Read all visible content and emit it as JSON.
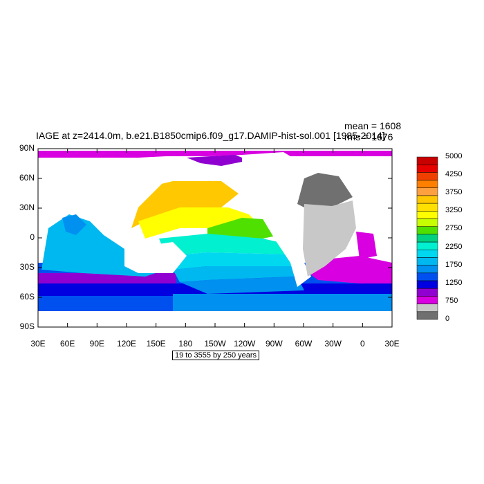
{
  "header": {
    "title": "IAGE at z=2414.0m, b.e21.B1850cmip6.f09_g17.DAMIP-hist-sol.001 [1985-2014]",
    "mean_label": "mean = 1608",
    "rms_label": "rms = 1676"
  },
  "axes": {
    "y_ticks": [
      "90N",
      "60N",
      "30N",
      "0",
      "30S",
      "60S",
      "90S"
    ],
    "x_ticks": [
      "30E",
      "60E",
      "90E",
      "120E",
      "150E",
      "180",
      "150W",
      "120W",
      "90W",
      "60W",
      "30W",
      "0",
      "30E"
    ]
  },
  "contour_info": "19 to 3555 by 250 years",
  "colorbar": {
    "labels": [
      "5000",
      "4250",
      "3750",
      "3250",
      "2750",
      "2250",
      "1750",
      "1250",
      "750",
      "0"
    ],
    "colors": [
      "#c80000",
      "#e60000",
      "#f04000",
      "#ff8000",
      "#ffa040",
      "#ffc800",
      "#ffe000",
      "#ffff00",
      "#c8ff00",
      "#50e000",
      "#00d080",
      "#00f0d0",
      "#00d8f0",
      "#00b8f0",
      "#0090f0",
      "#0050f0",
      "#0000e0",
      "#9000d0",
      "#d800e0",
      "#c8c8c8",
      "#707070"
    ]
  },
  "palette": {
    "land": "#ffffff",
    "land_dark": "#707070",
    "land_light": "#c8c8c8",
    "arctic": "#d800e0",
    "southern_violet": "#9000d0",
    "southern_blue": "#0000e0"
  }
}
